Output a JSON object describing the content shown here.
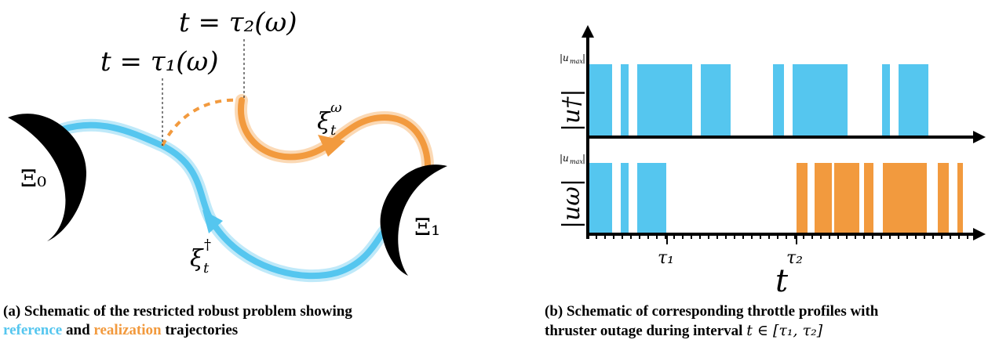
{
  "panel_a": {
    "tau2_label": "t = τ₂(ω)",
    "tau1_label": "t = τ₁(ω)",
    "xi0_label": "Ξ₀",
    "xi1_label": "Ξ₁",
    "xi_omega_label": "ξ",
    "xi_omega_sup": "ω",
    "xi_omega_sub": "t",
    "xi_dagger_label": "ξ",
    "xi_dagger_sup": "†",
    "xi_dagger_sub": "t"
  },
  "panel_b": {
    "umax_top": "|u",
    "umax_sub": "max",
    "udagger_label": "|u†|",
    "uomega_label": "|uω|",
    "tau1_tick": "τ₁",
    "tau2_tick": "τ₂",
    "t_axis": "t"
  },
  "captions": {
    "a_prefix": "(a) Schematic of the restricted robust problem showing",
    "a_reference": "reference",
    "a_and": " and ",
    "a_realization": "realization",
    "a_suffix": " trajectories",
    "b_line1": "(b) Schematic of corresponding throttle profiles with",
    "b_line2": "thruster outage during interval ",
    "b_math": "t ∈ [τ₁, τ₂]"
  },
  "colors": {
    "reference": "#55c6ef",
    "realization": "#f29a3e",
    "boundary": "#000000"
  }
}
